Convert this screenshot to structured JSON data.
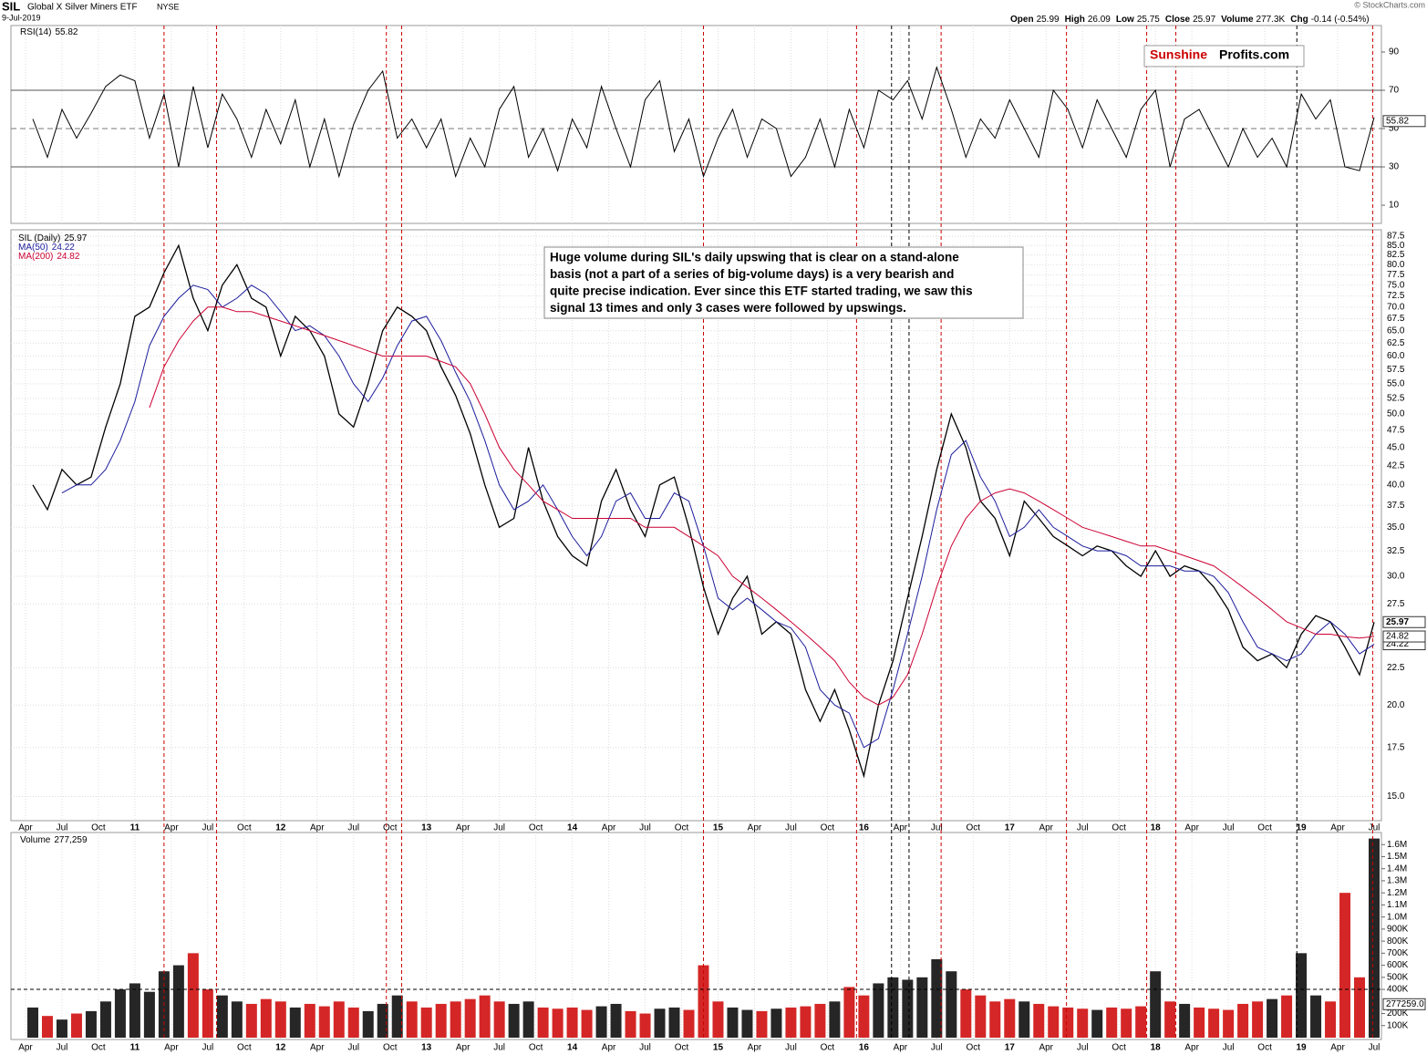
{
  "header": {
    "symbol": "SIL",
    "name": "Global X Silver Miners ETF",
    "exchange": "NYSE",
    "date": "9-Jul-2019",
    "copyright": "© StockCharts.com",
    "quote": [
      {
        "label": "Open",
        "value": 25.99
      },
      {
        "label": "High",
        "value": 26.09
      },
      {
        "label": "Low",
        "value": 25.75
      },
      {
        "label": "Close",
        "value": 25.97
      },
      {
        "label": "Volume",
        "value": "277.3K"
      },
      {
        "label": "Chg",
        "value": "-0.14 (-0.54%)"
      }
    ]
  },
  "logo": {
    "part1": "Sunshine",
    "part2": "Profits.com"
  },
  "annotation": [
    "Huge volume during SIL's daily upswing that is clear on a stand-alone",
    "basis (not a part of a series of big-volume days) is a very bearish and",
    "quite precise indication. Ever since this ETF started trading, we saw this",
    "signal 13 times and only 3 cases were followed by upswings."
  ],
  "chart_data": {
    "type": "line",
    "log_scale": true,
    "grid": true,
    "xlim": [
      2010.15,
      2019.55
    ],
    "xticks": [
      {
        "value": 2010.25,
        "label": "Apr"
      },
      {
        "value": 2010.5,
        "label": "Jul"
      },
      {
        "value": 2010.75,
        "label": "Oct"
      },
      {
        "value": 2011,
        "label": "11"
      },
      {
        "value": 2011.25,
        "label": "Apr"
      },
      {
        "value": 2011.5,
        "label": "Jul"
      },
      {
        "value": 2011.75,
        "label": "Oct"
      },
      {
        "value": 2012,
        "label": "12"
      },
      {
        "value": 2012.25,
        "label": "Apr"
      },
      {
        "value": 2012.5,
        "label": "Jul"
      },
      {
        "value": 2012.75,
        "label": "Oct"
      },
      {
        "value": 2013,
        "label": "13"
      },
      {
        "value": 2013.25,
        "label": "Apr"
      },
      {
        "value": 2013.5,
        "label": "Jul"
      },
      {
        "value": 2013.75,
        "label": "Oct"
      },
      {
        "value": 2014,
        "label": "14"
      },
      {
        "value": 2014.25,
        "label": "Apr"
      },
      {
        "value": 2014.5,
        "label": "Jul"
      },
      {
        "value": 2014.75,
        "label": "Oct"
      },
      {
        "value": 2015,
        "label": "15"
      },
      {
        "value": 2015.25,
        "label": "Apr"
      },
      {
        "value": 2015.5,
        "label": "Jul"
      },
      {
        "value": 2015.75,
        "label": "Oct"
      },
      {
        "value": 2016,
        "label": "16"
      },
      {
        "value": 2016.25,
        "label": "Apr"
      },
      {
        "value": 2016.5,
        "label": "Jul"
      },
      {
        "value": 2016.75,
        "label": "Oct"
      },
      {
        "value": 2017,
        "label": "17"
      },
      {
        "value": 2017.25,
        "label": "Apr"
      },
      {
        "value": 2017.5,
        "label": "Jul"
      },
      {
        "value": 2017.75,
        "label": "Oct"
      },
      {
        "value": 2018,
        "label": "18"
      },
      {
        "value": 2018.25,
        "label": "Apr"
      },
      {
        "value": 2018.5,
        "label": "Jul"
      },
      {
        "value": 2018.75,
        "label": "Oct"
      },
      {
        "value": 2019,
        "label": "19"
      },
      {
        "value": 2019.25,
        "label": "Apr"
      },
      {
        "value": 2019.5,
        "label": "Jul"
      }
    ],
    "x": [
      2010.3,
      2010.4,
      2010.5,
      2010.6,
      2010.7,
      2010.8,
      2010.9,
      2011.0,
      2011.1,
      2011.2,
      2011.3,
      2011.4,
      2011.5,
      2011.6,
      2011.7,
      2011.8,
      2011.9,
      2012.0,
      2012.1,
      2012.2,
      2012.3,
      2012.4,
      2012.5,
      2012.6,
      2012.7,
      2012.8,
      2012.9,
      2013.0,
      2013.1,
      2013.2,
      2013.3,
      2013.4,
      2013.5,
      2013.6,
      2013.7,
      2013.8,
      2013.9,
      2014.0,
      2014.1,
      2014.2,
      2014.3,
      2014.4,
      2014.5,
      2014.6,
      2014.7,
      2014.8,
      2014.9,
      2015.0,
      2015.1,
      2015.2,
      2015.3,
      2015.4,
      2015.5,
      2015.6,
      2015.7,
      2015.8,
      2015.9,
      2016.0,
      2016.1,
      2016.2,
      2016.3,
      2016.4,
      2016.5,
      2016.6,
      2016.7,
      2016.8,
      2016.9,
      2017.0,
      2017.1,
      2017.2,
      2017.3,
      2017.4,
      2017.5,
      2017.6,
      2017.7,
      2017.8,
      2017.9,
      2018.0,
      2018.1,
      2018.2,
      2018.3,
      2018.4,
      2018.5,
      2018.6,
      2018.7,
      2018.8,
      2018.9,
      2019.0,
      2019.1,
      2019.2,
      2019.3,
      2019.4,
      2019.5
    ],
    "series": [
      {
        "name": "SIL (Daily)",
        "color": "#000000",
        "values": [
          40,
          37,
          42,
          40,
          41,
          48,
          55,
          68,
          70,
          78,
          85,
          72,
          65,
          75,
          80,
          72,
          70,
          60,
          68,
          65,
          60,
          50,
          48,
          55,
          65,
          70,
          68,
          65,
          58,
          53,
          47,
          40,
          35,
          36,
          45,
          38,
          34,
          32,
          31,
          38,
          42,
          37,
          34,
          40,
          41,
          35,
          29,
          25,
          28,
          30,
          25,
          26,
          25,
          21,
          19,
          21,
          18.5,
          16,
          20,
          23,
          28,
          34,
          42,
          50,
          45,
          38,
          36,
          32,
          38,
          36,
          34,
          33,
          32,
          33,
          32.5,
          31,
          30,
          32.5,
          30,
          31,
          30.5,
          29,
          27,
          24,
          23,
          23.5,
          22.5,
          25,
          26.5,
          26,
          24,
          22,
          25.97
        ]
      },
      {
        "name": "MA(50)",
        "color": "#1c1c9c",
        "values": [
          null,
          null,
          39,
          40,
          40,
          42,
          46,
          52,
          62,
          68,
          72,
          75,
          74,
          70,
          72,
          75,
          73,
          69,
          65,
          66,
          64,
          60,
          55,
          52,
          56,
          62,
          67,
          68,
          63,
          57,
          52,
          46,
          40,
          37,
          38,
          40,
          37,
          34,
          32,
          34,
          38,
          39,
          36,
          36,
          39,
          38,
          33,
          28,
          27,
          28,
          27,
          26,
          25.5,
          24,
          21,
          20,
          19.5,
          17.5,
          18,
          21,
          25,
          30,
          37,
          44,
          46,
          41,
          38,
          34,
          35,
          37,
          35,
          34,
          33,
          32.5,
          32.5,
          32,
          31,
          31,
          31,
          30.5,
          30.5,
          30,
          28.5,
          26,
          24,
          23.5,
          23,
          23.5,
          25,
          26,
          25,
          23.5,
          24.22
        ]
      },
      {
        "name": "MA(200)",
        "color": "#cc0033",
        "values": [
          null,
          null,
          null,
          null,
          null,
          null,
          null,
          null,
          51,
          58,
          63,
          67,
          70,
          70,
          69,
          69,
          68,
          67,
          66,
          65,
          64,
          63,
          62,
          61,
          60,
          60,
          60,
          60,
          59,
          58,
          55,
          50,
          45,
          42,
          40,
          38,
          37,
          36,
          36,
          36,
          36,
          36,
          35,
          35,
          35,
          34,
          33,
          32,
          30,
          29,
          28,
          27,
          26,
          25,
          24,
          23,
          21.5,
          20.5,
          20,
          20.5,
          22,
          25,
          29,
          33,
          36,
          38,
          39,
          39.5,
          39,
          38,
          37,
          36,
          35,
          34.5,
          34,
          33.5,
          33,
          33,
          32.5,
          32,
          31.5,
          31,
          30,
          29,
          28,
          27,
          26,
          25.5,
          25,
          25,
          24.8,
          24.7,
          24.82
        ]
      }
    ],
    "ylim": [
      13.9,
      89.3
    ],
    "yticks": [
      {
        "value": 15,
        "label": "15.0"
      },
      17.5,
      {
        "value": 20,
        "label": "20.0"
      },
      22.5,
      27.5,
      {
        "value": 30,
        "label": "30.0"
      },
      32.5,
      {
        "value": 35,
        "label": "35.0"
      },
      37.5,
      {
        "value": 40,
        "label": "40.0"
      },
      42.5,
      {
        "value": 45,
        "label": "45.0"
      },
      47.5,
      {
        "value": 50,
        "label": "50.0"
      },
      52.5,
      {
        "value": 55,
        "label": "55.0"
      },
      57.5,
      {
        "value": 60,
        "label": "60.0"
      },
      62.5,
      {
        "value": 65,
        "label": "65.0"
      },
      67.5,
      {
        "value": 70,
        "label": "70.0"
      },
      72.5,
      {
        "value": 75,
        "label": "75.0"
      },
      77.5,
      {
        "value": 80,
        "label": "80.0"
      },
      82.5,
      {
        "value": 85,
        "label": "85.0"
      },
      87.5
    ],
    "signals": [
      {
        "x": 2011.2,
        "color": "#cc0000"
      },
      {
        "x": 2011.56,
        "color": "#cc0000"
      },
      {
        "x": 2012.725,
        "color": "#cc0000"
      },
      {
        "x": 2012.83,
        "color": "#cc0000"
      },
      {
        "x": 2014.9,
        "color": "#cc0000"
      },
      {
        "x": 2015.95,
        "color": "#cc0000"
      },
      {
        "x": 2016.19,
        "color": "#000000"
      },
      {
        "x": 2016.31,
        "color": "#000000"
      },
      {
        "x": 2016.53,
        "color": "#cc0000"
      },
      {
        "x": 2017.39,
        "color": "#cc0000"
      },
      {
        "x": 2017.94,
        "color": "#cc0000"
      },
      {
        "x": 2018.14,
        "color": "#cc0000"
      },
      {
        "x": 2018.97,
        "color": "#000000"
      },
      {
        "x": 2019.49,
        "color": "#cc0000"
      }
    ],
    "rsi": {
      "name": "RSI(14)",
      "color": "#000000",
      "ylim": [
        0.5,
        103.8
      ],
      "yticks": [
        10,
        30,
        50,
        70,
        90
      ],
      "bands": [
        30,
        70
      ],
      "midline": 50,
      "values": [
        55,
        35,
        60,
        45,
        58,
        72,
        78,
        75,
        45,
        68,
        30,
        72,
        40,
        68,
        55,
        35,
        60,
        42,
        65,
        30,
        55,
        25,
        52,
        70,
        80,
        45,
        55,
        40,
        55,
        25,
        45,
        30,
        60,
        72,
        35,
        50,
        28,
        55,
        40,
        72,
        50,
        30,
        65,
        75,
        38,
        55,
        25,
        45,
        60,
        35,
        55,
        50,
        25,
        35,
        55,
        30,
        60,
        40,
        70,
        65,
        75,
        55,
        82,
        60,
        35,
        55,
        45,
        65,
        50,
        35,
        70,
        60,
        40,
        65,
        50,
        35,
        60,
        70,
        30,
        55,
        60,
        45,
        30,
        50,
        35,
        45,
        30,
        68,
        55,
        65,
        30,
        28,
        55.82
      ]
    },
    "volume": {
      "name": "Volume",
      "legend": {
        "value": 277259,
        "label": "277,259"
      },
      "last_label": {
        "value": 277259,
        "label": "277259.0"
      },
      "up_color": "#000000",
      "down_color": "#cc0000",
      "ylim": [
        0,
        1700000
      ],
      "reference_line": 400000,
      "yticks": [
        {
          "value": 100000,
          "label": "100K"
        },
        {
          "value": 200000,
          "label": "200K"
        },
        {
          "value": 400000,
          "label": "400K"
        },
        {
          "value": 500000,
          "label": "500K"
        },
        {
          "value": 600000,
          "label": "600K"
        },
        {
          "value": 700000,
          "label": "700K"
        },
        {
          "value": 800000,
          "label": "800K"
        },
        {
          "value": 900000,
          "label": "900K"
        },
        {
          "value": 1000000,
          "label": "1.0M"
        },
        {
          "value": 1100000,
          "label": "1.1M"
        },
        {
          "value": 1200000,
          "label": "1.2M"
        },
        {
          "value": 1300000,
          "label": "1.3M"
        },
        {
          "value": 1400000,
          "label": "1.4M"
        },
        {
          "value": 1500000,
          "label": "1.5M"
        },
        {
          "value": 1600000,
          "label": "1.6M"
        }
      ],
      "values": [
        250000,
        180000,
        150000,
        200000,
        220000,
        300000,
        400000,
        450000,
        380000,
        550000,
        600000,
        700000,
        400000,
        350000,
        300000,
        280000,
        320000,
        300000,
        250000,
        280000,
        260000,
        300000,
        250000,
        220000,
        280000,
        350000,
        300000,
        250000,
        280000,
        300000,
        320000,
        350000,
        300000,
        280000,
        300000,
        250000,
        240000,
        250000,
        230000,
        260000,
        280000,
        220000,
        200000,
        240000,
        250000,
        230000,
        600000,
        300000,
        250000,
        230000,
        220000,
        240000,
        250000,
        260000,
        280000,
        300000,
        420000,
        350000,
        450000,
        500000,
        480000,
        500000,
        650000,
        550000,
        400000,
        350000,
        300000,
        320000,
        300000,
        280000,
        260000,
        250000,
        240000,
        230000,
        250000,
        240000,
        260000,
        550000,
        300000,
        280000,
        250000,
        240000,
        230000,
        280000,
        300000,
        320000,
        350000,
        700000,
        350000,
        300000,
        1200000,
        500000,
        1650000
      ]
    }
  }
}
